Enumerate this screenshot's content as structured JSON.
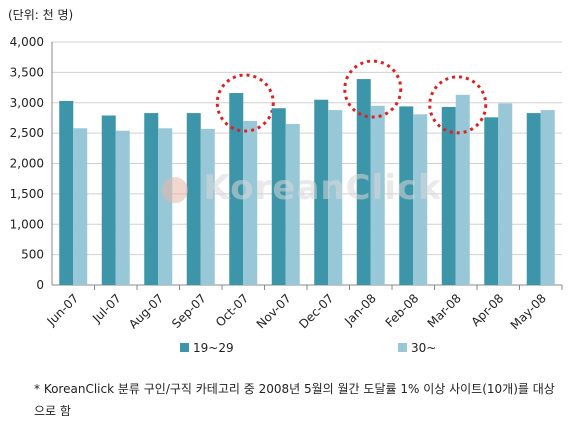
{
  "chart_data": {
    "type": "bar",
    "unit_label": "(단위: 천 명)",
    "categories": [
      "Jun-07",
      "Jul-07",
      "Aug-07",
      "Sep-07",
      "Oct-07",
      "Nov-07",
      "Dec-07",
      "Jan-08",
      "Feb-08",
      "Mar-08",
      "Apr-08",
      "May-08"
    ],
    "series": [
      {
        "name": "19~29",
        "color": "#3d95a9",
        "values": [
          3030,
          2790,
          2830,
          2830,
          3160,
          2910,
          3050,
          3390,
          2940,
          2930,
          2760,
          2830
        ]
      },
      {
        "name": "30~",
        "color": "#98c8d8",
        "values": [
          2580,
          2540,
          2580,
          2570,
          2700,
          2650,
          2880,
          2950,
          2810,
          3130,
          2990,
          2880
        ]
      }
    ],
    "ylim": [
      0,
      4000
    ],
    "yticks": [
      "0",
      "500",
      "1,000",
      "1,500",
      "2,000",
      "2,500",
      "3,000",
      "3,500",
      "4,000"
    ],
    "ytick_values": [
      0,
      500,
      1000,
      1500,
      2000,
      2500,
      3000,
      3500,
      4000
    ],
    "grid": true,
    "legend_position": "bottom",
    "highlighted_categories": [
      "Oct-07",
      "Jan-08",
      "Mar-08"
    ],
    "highlight_color": "#e02020",
    "watermark": "KoreanClick"
  },
  "footnote": "* KoreanClick 분류 구인/구직 카테고리 중 2008년 5월의 월간 도달률 1% 이상 사이트(10개)를 대상으로 함"
}
